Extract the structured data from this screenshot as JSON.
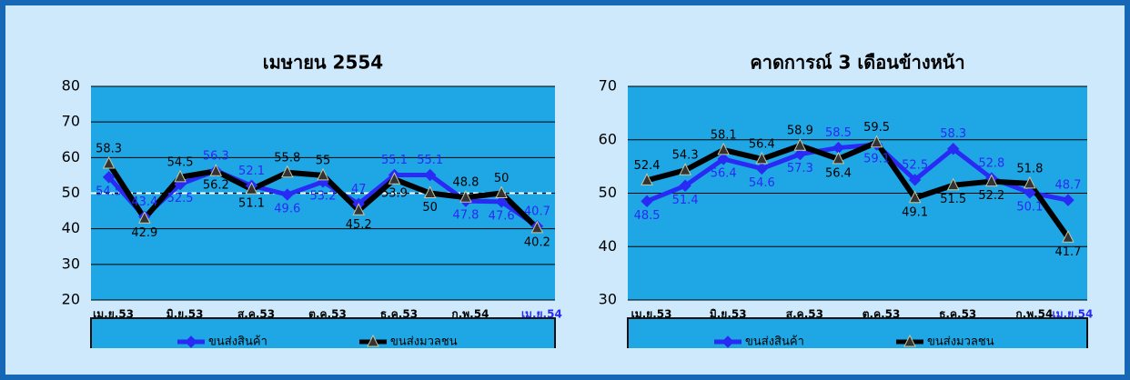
{
  "chart_data": [
    {
      "type": "line",
      "title": "เมษายน 2554",
      "categories": [
        "เม.ย.53",
        null,
        "มิ.ย.53",
        null,
        "ส.ค.53",
        null,
        "ต.ค.53",
        null,
        "ธ.ค.53",
        null,
        "ก.พ.54",
        null,
        "เม.ย.54"
      ],
      "series": [
        {
          "name": "ขนส่งสินค้า",
          "color": "#2a2af5",
          "marker": "diamond",
          "values": [
            54.5,
            43.4,
            52.5,
            56.3,
            52.1,
            49.6,
            53.2,
            47.0,
            55.1,
            55.1,
            47.8,
            47.6,
            40.7
          ]
        },
        {
          "name": "ขนส่งมวลชน",
          "color": "#000000",
          "marker": "triangle",
          "values": [
            58.3,
            42.9,
            54.5,
            56.2,
            51.1,
            55.8,
            55.0,
            45.2,
            53.9,
            50.0,
            48.8,
            50.0,
            40.2
          ]
        }
      ],
      "ylim": [
        20,
        80
      ],
      "yticks": [
        20,
        30,
        40,
        50,
        60,
        70,
        80
      ],
      "grid": true,
      "reference_line": 50
    },
    {
      "type": "line",
      "title": "คาดการณ์ 3 เดือนข้างหน้า",
      "categories": [
        "เม.ย.53",
        null,
        "มิ.ย.53",
        null,
        "ส.ค.53",
        null,
        "ต.ค.53",
        null,
        "ธ.ค.53",
        null,
        "ก.พ.54",
        "เม.ย.54"
      ],
      "series": [
        {
          "name": "ขนส่งสินค้า",
          "color": "#2a2af5",
          "marker": "diamond",
          "values": [
            48.5,
            51.4,
            56.4,
            54.6,
            57.3,
            58.5,
            59.1,
            52.5,
            58.3,
            52.8,
            50.1,
            48.7
          ]
        },
        {
          "name": "ขนส่งมวลชน",
          "color": "#000000",
          "marker": "triangle",
          "values": [
            52.4,
            54.3,
            58.1,
            56.4,
            58.9,
            56.4,
            59.5,
            49.1,
            51.5,
            52.2,
            51.8,
            41.7
          ]
        }
      ],
      "ylim": [
        30,
        70
      ],
      "yticks": [
        30,
        40,
        50,
        60,
        70
      ],
      "grid": true
    }
  ]
}
